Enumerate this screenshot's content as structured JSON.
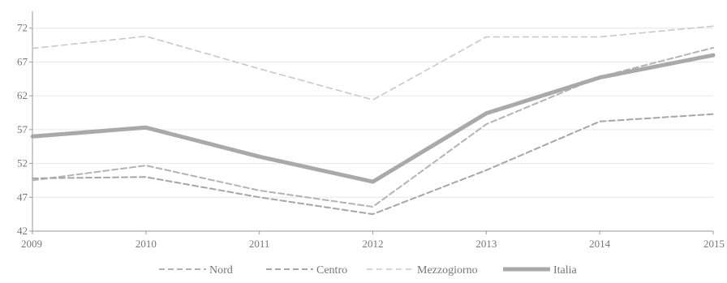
{
  "chart_data": {
    "type": "line",
    "title": "",
    "xlabel": "",
    "ylabel": "",
    "x": [
      "2009",
      "2010",
      "2011",
      "2012",
      "2013",
      "2014",
      "2015"
    ],
    "ylim": [
      42,
      74
    ],
    "yticks": [
      42,
      47,
      52,
      57,
      62,
      67,
      72
    ],
    "grid": "horizontal",
    "legend_position": "bottom",
    "series": [
      {
        "name": "Nord",
        "style": "dashed",
        "color": "#b3b3b3",
        "values": [
          49.5,
          51.7,
          48.0,
          45.6,
          57.8,
          64.8,
          69.1
        ]
      },
      {
        "name": "Centro",
        "style": "dashed",
        "color": "#a6a6a6",
        "values": [
          49.8,
          50.0,
          47.0,
          44.5,
          51.0,
          58.2,
          59.3
        ]
      },
      {
        "name": "Mezzogiorno",
        "style": "dashed",
        "color": "#c8c8c8",
        "values": [
          69.0,
          70.8,
          66.0,
          61.4,
          70.7,
          70.7,
          72.3
        ]
      },
      {
        "name": "Italia",
        "style": "solid",
        "color": "#a9a9a9",
        "values": [
          56.0,
          57.3,
          53.0,
          49.3,
          59.4,
          64.7,
          68.0
        ]
      }
    ]
  }
}
